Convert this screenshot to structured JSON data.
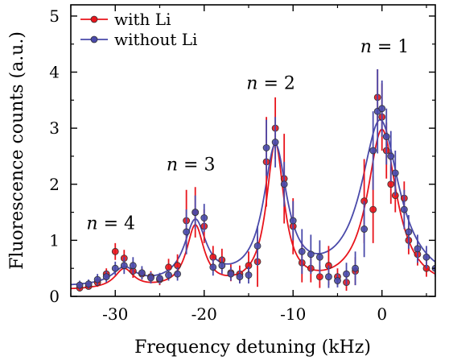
{
  "chart_data": {
    "type": "scatter",
    "xlabel": "Frequency detuning (kHz)",
    "ylabel": "Fluorescence counts (a.u.)",
    "xlim": [
      -35,
      6
    ],
    "ylim": [
      0,
      5.2
    ],
    "x_ticks": [
      -30,
      -20,
      -10,
      0
    ],
    "x_tick_labels": [
      "-30",
      "-20",
      "-10",
      "0"
    ],
    "y_ticks": [
      0,
      1,
      2,
      3,
      4,
      5
    ],
    "y_tick_labels": [
      "0",
      "1",
      "2",
      "3",
      "4",
      "5"
    ],
    "grid": false,
    "legend": "top-left",
    "annotations": [
      {
        "var": "n",
        "rest": " = 1",
        "x": 0.3,
        "y": 4.35
      },
      {
        "var": "n",
        "rest": " = 2",
        "x": -12.5,
        "y": 3.7
      },
      {
        "var": "n",
        "rest": " = 3",
        "x": -21.5,
        "y": 2.25
      },
      {
        "var": "n",
        "rest": " = 4",
        "x": -30.5,
        "y": 1.2
      }
    ],
    "series": [
      {
        "name": "with Li",
        "color": "#e8141c",
        "points": [
          [
            -34,
            0.15,
            0.05
          ],
          [
            -33,
            0.18,
            0.05
          ],
          [
            -32,
            0.25,
            0.08
          ],
          [
            -31,
            0.4,
            0.1
          ],
          [
            -30,
            0.8,
            0.15
          ],
          [
            -29,
            0.68,
            0.15
          ],
          [
            -28,
            0.45,
            0.12
          ],
          [
            -27,
            0.4,
            0.1
          ],
          [
            -26,
            0.35,
            0.1
          ],
          [
            -25,
            0.3,
            0.1
          ],
          [
            -24,
            0.52,
            0.15
          ],
          [
            -23,
            0.55,
            0.2
          ],
          [
            -22,
            1.35,
            0.55
          ],
          [
            -21,
            1.5,
            0.45
          ],
          [
            -20,
            1.25,
            0.3
          ],
          [
            -19,
            0.7,
            0.2
          ],
          [
            -18,
            0.65,
            0.2
          ],
          [
            -17,
            0.42,
            0.15
          ],
          [
            -16,
            0.4,
            0.15
          ],
          [
            -15,
            0.55,
            0.25
          ],
          [
            -14,
            0.62,
            0.45
          ],
          [
            -13,
            2.4,
            0.8
          ],
          [
            -12,
            3.0,
            0.55
          ],
          [
            -11,
            2.1,
            0.8
          ],
          [
            -10,
            1.25,
            0.5
          ],
          [
            -9,
            0.6,
            0.35
          ],
          [
            -8,
            0.5,
            0.25
          ],
          [
            -7,
            0.35,
            0.2
          ],
          [
            -6,
            0.55,
            0.35
          ],
          [
            -5,
            0.35,
            0.15
          ],
          [
            -4,
            0.25,
            0.15
          ],
          [
            -3,
            0.45,
            0.25
          ],
          [
            -2,
            1.7,
            0.75
          ],
          [
            -1,
            1.55,
            0.6
          ],
          [
            -0.5,
            3.55,
            0.5
          ],
          [
            0,
            3.2,
            0.6
          ],
          [
            0.5,
            2.6,
            0.5
          ],
          [
            1,
            2.0,
            0.35
          ],
          [
            1.5,
            1.8,
            0.3
          ],
          [
            2.5,
            1.75,
            0.3
          ],
          [
            3,
            1.0,
            0.25
          ],
          [
            4,
            0.75,
            0.2
          ],
          [
            5,
            0.5,
            0.15
          ]
        ],
        "fit": [
          {
            "x0": 0.0,
            "a": 2.85,
            "g": 2.0
          },
          {
            "x0": -12.0,
            "a": 2.55,
            "g": 1.2
          },
          {
            "x0": -21.0,
            "a": 1.1,
            "g": 1.2
          },
          {
            "x0": -29.0,
            "a": 0.35,
            "g": 1.3
          }
        ],
        "fit_baseline": 0.1
      },
      {
        "name": "without Li",
        "color": "#4a4aaa",
        "points": [
          [
            -34,
            0.2,
            0.08
          ],
          [
            -33,
            0.22,
            0.08
          ],
          [
            -32,
            0.3,
            0.1
          ],
          [
            -31,
            0.35,
            0.1
          ],
          [
            -30,
            0.5,
            0.12
          ],
          [
            -29,
            0.55,
            0.15
          ],
          [
            -28,
            0.55,
            0.15
          ],
          [
            -27,
            0.42,
            0.12
          ],
          [
            -26,
            0.33,
            0.1
          ],
          [
            -25,
            0.32,
            0.1
          ],
          [
            -24,
            0.38,
            0.1
          ],
          [
            -23,
            0.4,
            0.12
          ],
          [
            -22,
            1.15,
            0.4
          ],
          [
            -21,
            1.5,
            0.3
          ],
          [
            -20,
            1.4,
            0.25
          ],
          [
            -19,
            0.52,
            0.15
          ],
          [
            -18,
            0.55,
            0.15
          ],
          [
            -17,
            0.4,
            0.12
          ],
          [
            -16,
            0.35,
            0.12
          ],
          [
            -15,
            0.38,
            0.15
          ],
          [
            -14,
            0.9,
            0.35
          ],
          [
            -13,
            2.65,
            0.5
          ],
          [
            -12,
            2.75,
            0.45
          ],
          [
            -11,
            2.0,
            0.4
          ],
          [
            -10,
            1.35,
            0.35
          ],
          [
            -9,
            0.8,
            0.4
          ],
          [
            -8,
            0.75,
            0.35
          ],
          [
            -7,
            0.7,
            0.3
          ],
          [
            -6,
            0.35,
            0.2
          ],
          [
            -5,
            0.28,
            0.12
          ],
          [
            -4,
            0.4,
            0.2
          ],
          [
            -3,
            0.5,
            0.3
          ],
          [
            -2,
            1.2,
            0.5
          ],
          [
            -1,
            2.6,
            0.7
          ],
          [
            -0.5,
            3.3,
            0.75
          ],
          [
            0,
            3.35,
            0.5
          ],
          [
            0.5,
            2.85,
            0.5
          ],
          [
            1,
            2.5,
            0.45
          ],
          [
            1.5,
            2.2,
            0.4
          ],
          [
            2.5,
            1.55,
            0.35
          ],
          [
            3,
            1.15,
            0.3
          ],
          [
            4,
            0.85,
            0.25
          ],
          [
            5,
            0.7,
            0.2
          ],
          [
            6,
            0.5,
            0.15
          ]
        ],
        "fit": [
          {
            "x0": -0.2,
            "a": 2.95,
            "g": 2.6
          },
          {
            "x0": -12.0,
            "a": 2.4,
            "g": 1.6
          },
          {
            "x0": -21.0,
            "a": 1.1,
            "g": 1.5
          },
          {
            "x0": -29.0,
            "a": 0.3,
            "g": 1.6
          }
        ],
        "fit_baseline": 0.15
      }
    ]
  }
}
